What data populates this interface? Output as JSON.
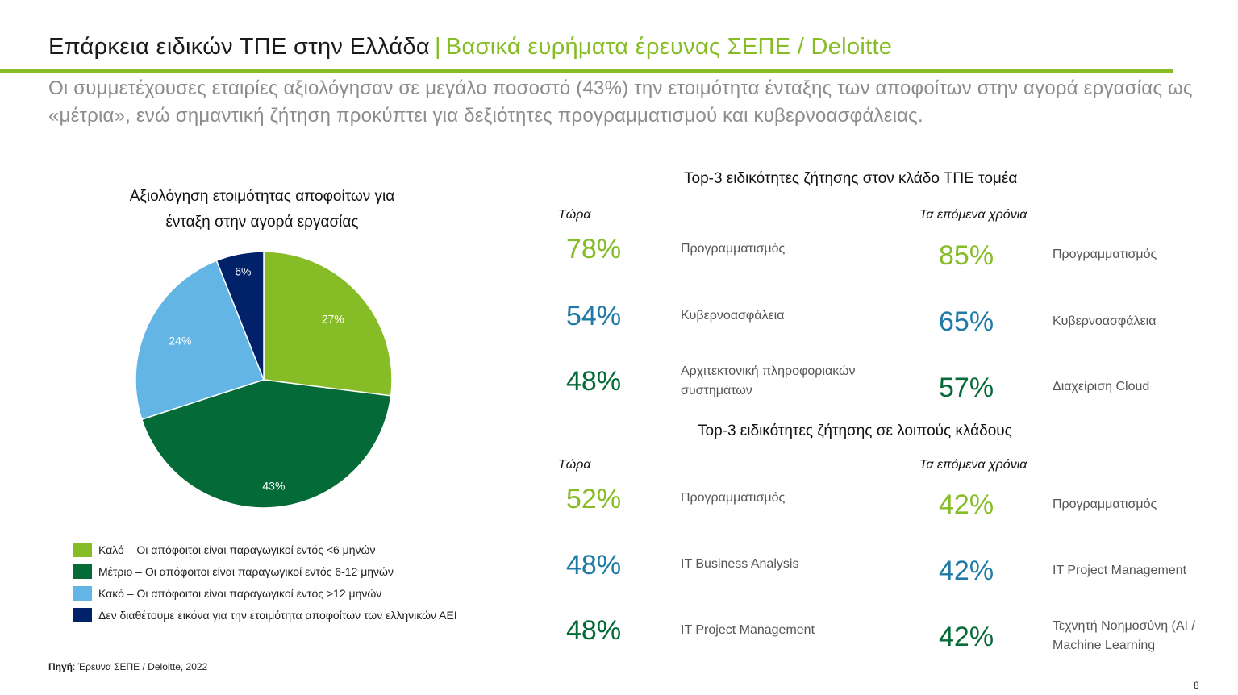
{
  "header": {
    "title": "Επάρκεια ειδικών ΤΠΕ στην Ελλάδα",
    "separator": "|",
    "title_accent": "Βασικά ευρήματα έρευνας ΣΕΠΕ / Deloitte",
    "subtitle": "Οι συμμετέχουσες εταιρίες αξιολόγησαν σε μεγάλο ποσοστό (43%) την ετοιμότητα ένταξης των αποφοίτων στην αγορά εργασίας ως «μέτρια», ενώ σημαντική ζήτηση προκύπτει για δεξιότητες προγραμματισμού και κυβερνοασφάλειας."
  },
  "colors": {
    "brand_green": "#86bc25",
    "dark_green": "#046a38",
    "light_blue": "#62b5e5",
    "navy": "#012169",
    "teal_blue": "#1f7ba6"
  },
  "chart_data": {
    "type": "pie",
    "title": "Αξιολόγηση ετοιμότητας αποφοίτων για ένταξη στην αγορά εργασίας",
    "title_line1": "Αξιολόγηση ετοιμότητας αποφοίτων για",
    "title_line2": "ένταξη στην αγορά εργασίας",
    "slices": [
      {
        "value": 27,
        "label": "27%",
        "legend": "Καλό – Οι απόφοιτοι είναι παραγωγικοί εντός <6 μηνών",
        "color": "#86bc25"
      },
      {
        "value": 43,
        "label": "43%",
        "legend": "Μέτριο – Οι απόφοιτοι είναι παραγωγικοί εντός 6-12 μηνών",
        "color": "#046a38"
      },
      {
        "value": 24,
        "label": "24%",
        "legend": "Κακό – Οι απόφοιτοι είναι παραγωγικοί εντός >12 μηνών",
        "color": "#62b5e5"
      },
      {
        "value": 6,
        "label": "6%",
        "legend": "Δεν διαθέτουμε εικόνα για την ετοιμότητα αποφοίτων των ελληνικών ΑΕΙ",
        "color": "#012169"
      }
    ],
    "legend_placement": "bottom"
  },
  "ict_sector": {
    "title": "Top-3 ειδικότητες ζήτησης στον κλάδο ΤΠΕ τομέα",
    "now_label": "Τώρα",
    "future_label": "Τα επόμενα χρόνια",
    "now": [
      {
        "pct": "78%",
        "skill": "Προγραμματισμός"
      },
      {
        "pct": "54%",
        "skill": "Κυβερνοασφάλεια"
      },
      {
        "pct": "48%",
        "skill_line1": "Αρχιτεκτονική πληροφοριακών",
        "skill_line2": "συστημάτων"
      }
    ],
    "future": [
      {
        "pct": "85%",
        "skill": "Προγραμματισμός"
      },
      {
        "pct": "65%",
        "skill": "Κυβερνοασφάλεια"
      },
      {
        "pct": "57%",
        "skill": "Διαχείριση Cloud"
      }
    ]
  },
  "other_sectors": {
    "title": "Top-3 ειδικότητες ζήτησης σε λοιπούς κλάδους",
    "now_label": "Τώρα",
    "future_label": "Τα επόμενα χρόνια",
    "now": [
      {
        "pct": "52%",
        "skill": "Προγραμματισμός"
      },
      {
        "pct": "48%",
        "skill": "IT Business Analysis"
      },
      {
        "pct": "48%",
        "skill": "IT Project Management"
      }
    ],
    "future": [
      {
        "pct": "42%",
        "skill": "Προγραμματισμός"
      },
      {
        "pct": "42%",
        "skill": "IT Project Management"
      },
      {
        "pct": "42%",
        "skill_line1": "Τεχνητή Νοημοσύνη (AI /",
        "skill_line2": "Machine Learning"
      }
    ]
  },
  "footer": {
    "source_label": "Πηγή",
    "source_text": ": Έρευνα ΣΕΠΕ / Deloitte, 2022",
    "page_number": "8"
  }
}
